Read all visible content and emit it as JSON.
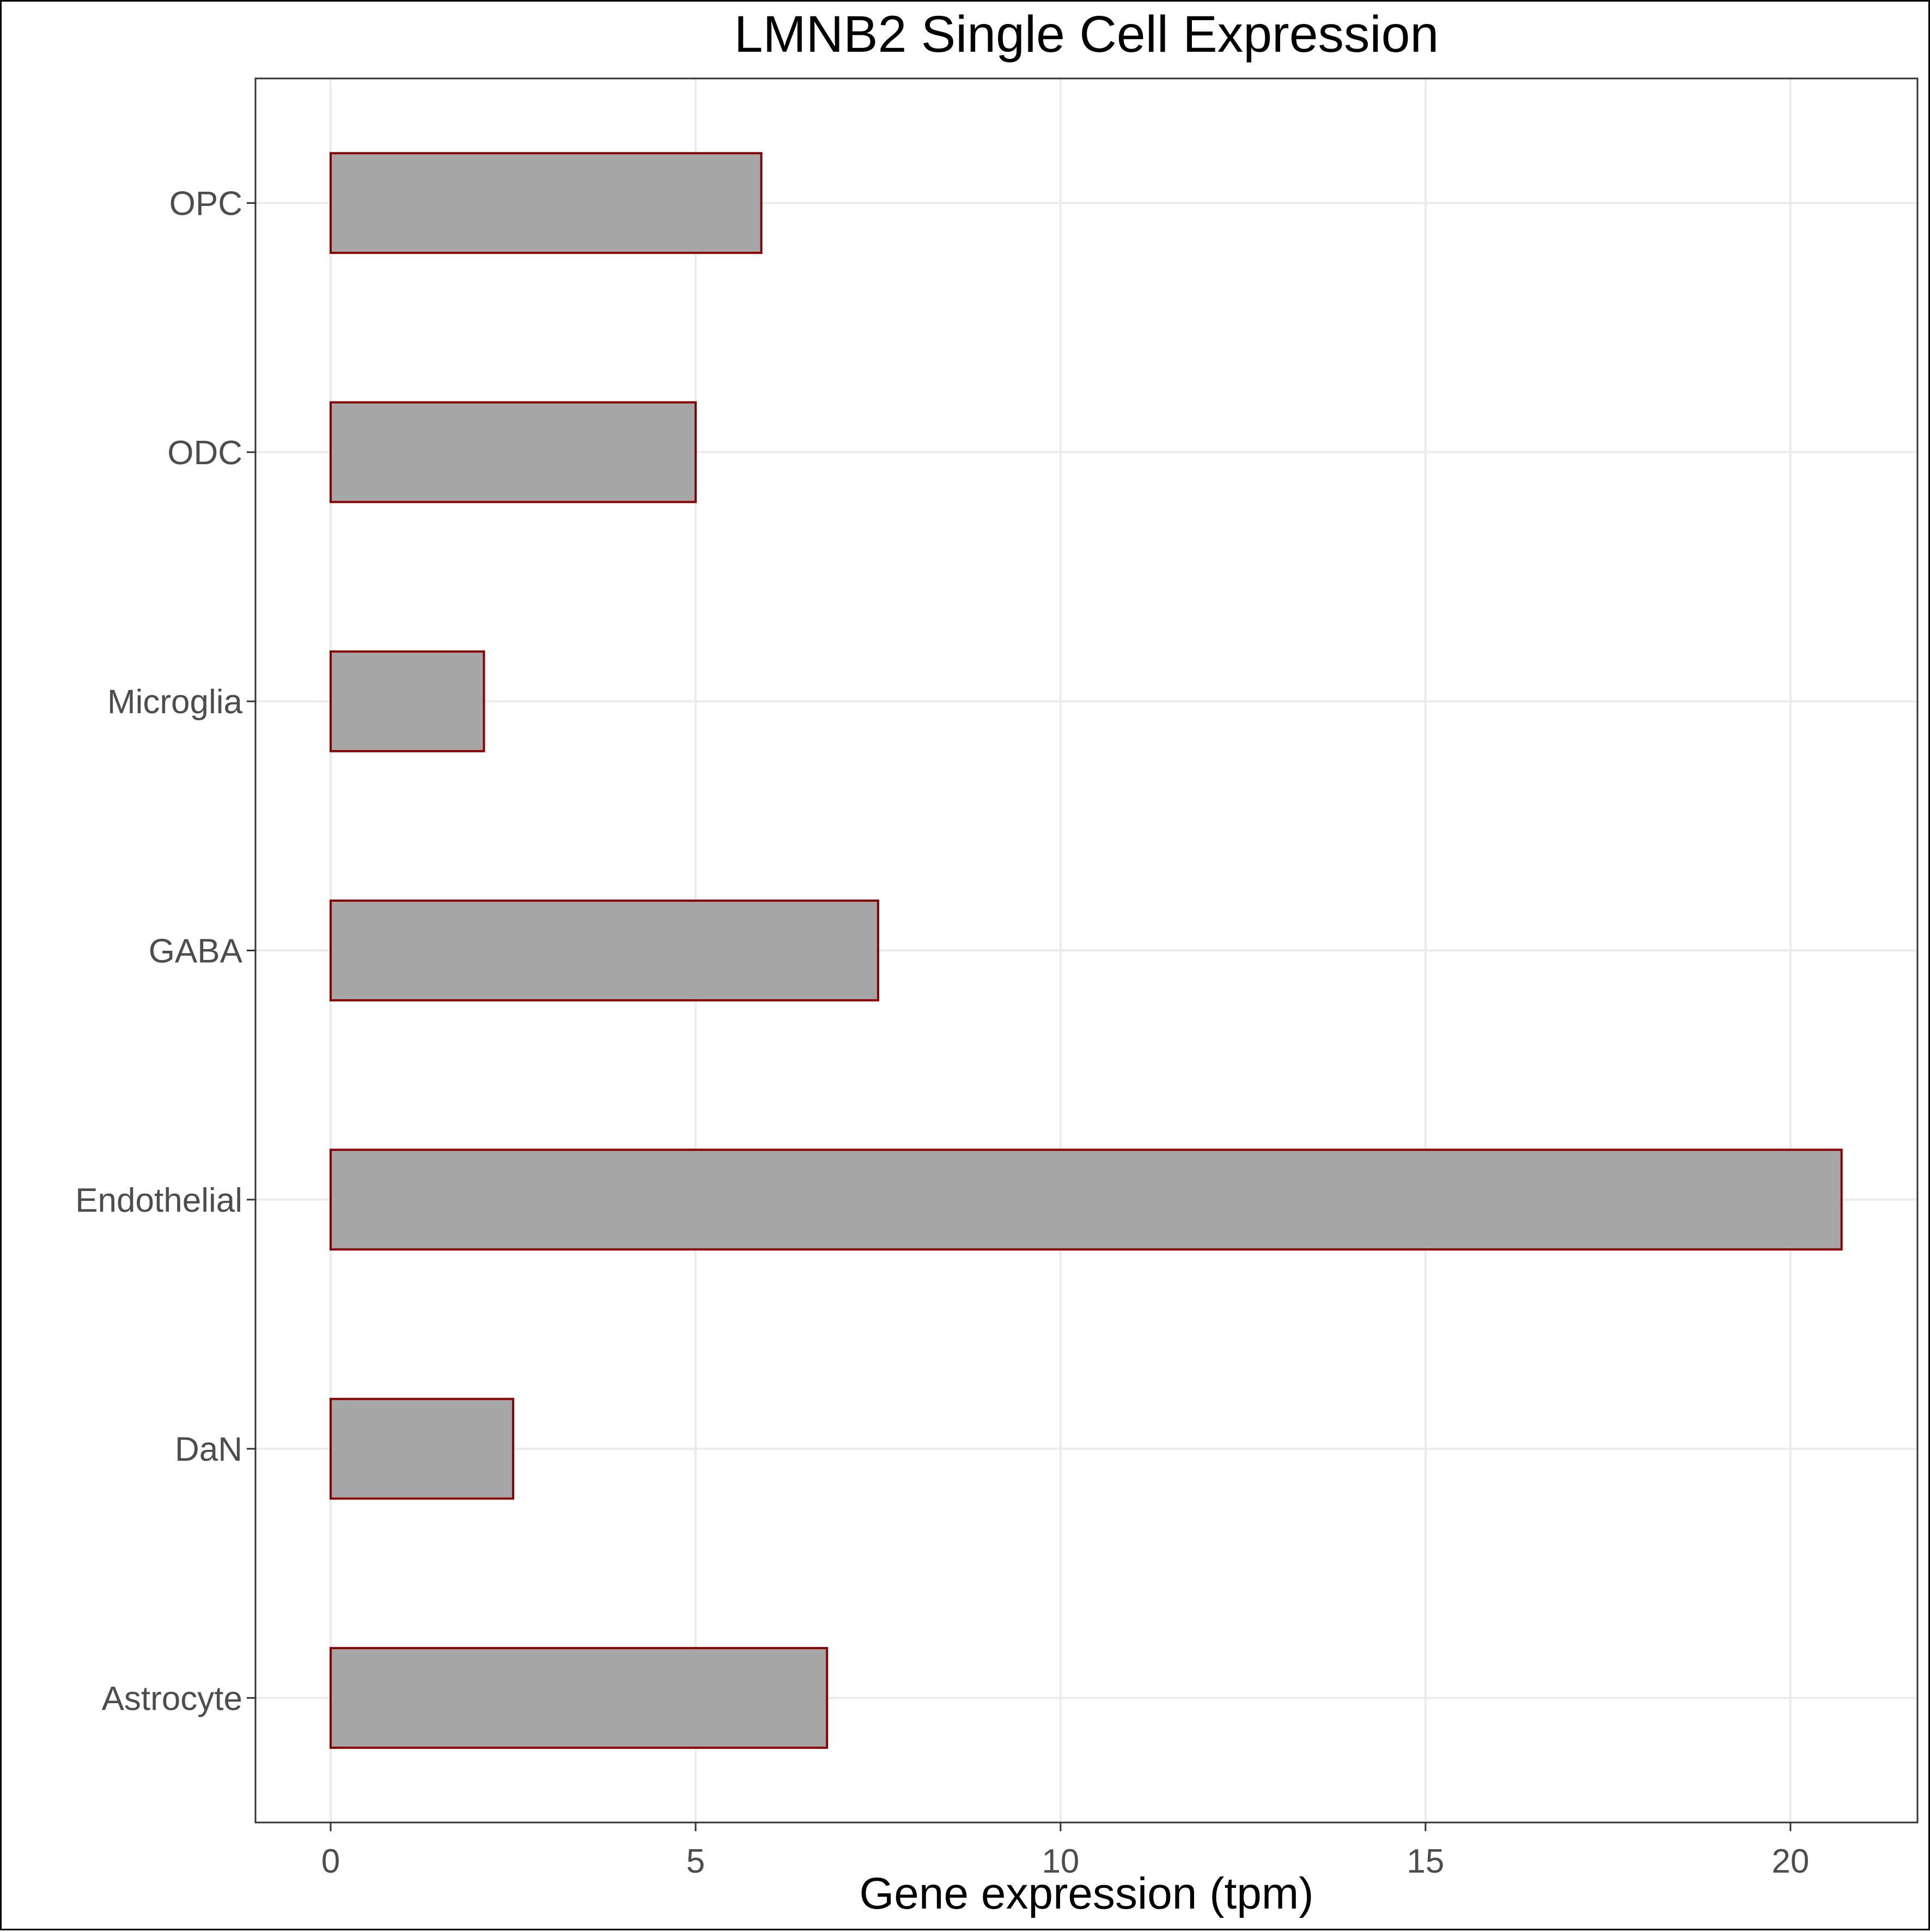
{
  "chart_data": {
    "type": "bar",
    "orientation": "horizontal",
    "title": "LMNB2 Single Cell Expression",
    "xlabel": "Gene expression (tpm)",
    "ylabel": "",
    "categories": [
      "Astrocyte",
      "DaN",
      "Endothelial",
      "GABA",
      "Microglia",
      "ODC",
      "OPC"
    ],
    "values": [
      6.8,
      2.5,
      20.7,
      7.5,
      2.1,
      5.0,
      5.9
    ],
    "xlim": [
      -1.03,
      21.74
    ],
    "xticks": [
      0,
      5,
      10,
      15,
      20
    ],
    "grid": true,
    "colors": {
      "bar_fill": "#a6a6a6",
      "bar_outline": "#8b0000",
      "grid": "#ebebeb",
      "panel_border": "#333333",
      "tick_label": "#4d4d4d"
    }
  }
}
